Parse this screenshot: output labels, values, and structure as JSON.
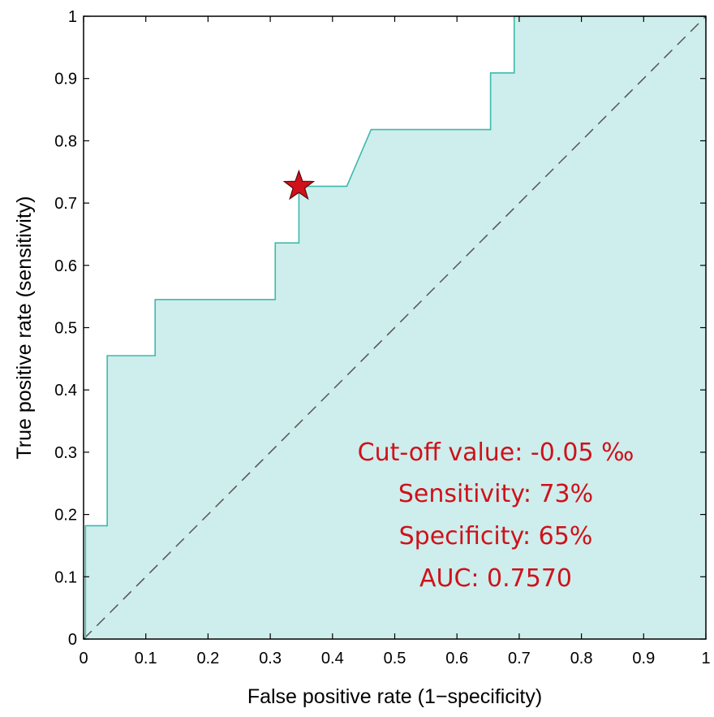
{
  "chart_data": {
    "type": "line",
    "title": "",
    "xlabel": "False positive rate (1−specificity)",
    "ylabel": "True positive rate (sensitivity)",
    "xlim": [
      0,
      1
    ],
    "ylim": [
      0,
      1
    ],
    "xticks": [
      0,
      0.1,
      0.2,
      0.3,
      0.4,
      0.5,
      0.6,
      0.7,
      0.8,
      0.9,
      1
    ],
    "yticks": [
      0,
      0.1,
      0.2,
      0.3,
      0.4,
      0.5,
      0.6,
      0.7,
      0.8,
      0.9,
      1
    ],
    "xtick_labels": [
      "0",
      "0.1",
      "0.2",
      "0.3",
      "0.4",
      "0.5",
      "0.6",
      "0.7",
      "0.8",
      "0.9",
      "1"
    ],
    "ytick_labels": [
      "0",
      "0.1",
      "0.2",
      "0.3",
      "0.4",
      "0.5",
      "0.6",
      "0.7",
      "0.8",
      "0.9",
      "1"
    ],
    "grid": false,
    "series": [
      {
        "name": "",
        "x": [
          0,
          0.003,
          0.003,
          0.038,
          0.038,
          0.115,
          0.115,
          0.308,
          0.308,
          0.346,
          0.346,
          0.423,
          0.462,
          0.654,
          0.654,
          0.692,
          0.692,
          1
        ],
        "y": [
          0,
          0,
          0.182,
          0.182,
          0.455,
          0.455,
          0.545,
          0.545,
          0.636,
          0.636,
          0.727,
          0.727,
          0.818,
          0.818,
          0.909,
          0.909,
          1,
          1
        ],
        "line_color": "#3fb8ae",
        "fill_color": "#cdeeec"
      }
    ],
    "reference_line": {
      "x": [
        0,
        1
      ],
      "y": [
        0,
        1
      ],
      "style": "dashed",
      "color": "#555555"
    },
    "optimal_point": {
      "x": 0.346,
      "y": 0.727,
      "marker": "star",
      "color": "#d0111b"
    },
    "annotations": {
      "color": "#d0111b",
      "lines": [
        "Cut-off value: -0.05 ‰",
        "Sensitivity: 73%",
        "Specificity: 65%",
        "AUC: 0.7570"
      ]
    }
  }
}
